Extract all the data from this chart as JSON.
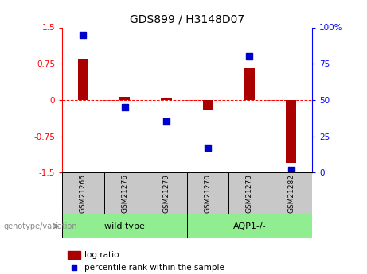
{
  "title": "GDS899 / H3148D07",
  "samples": [
    "GSM21266",
    "GSM21276",
    "GSM21279",
    "GSM21270",
    "GSM21273",
    "GSM21282"
  ],
  "log_ratios": [
    0.85,
    0.07,
    0.05,
    -0.2,
    0.65,
    -1.3
  ],
  "percentile_ranks": [
    95,
    45,
    35,
    17,
    80,
    2
  ],
  "bar_color": "#AA0000",
  "dot_color": "#0000CC",
  "ylim": [
    -1.5,
    1.5
  ],
  "yticks_left": [
    -1.5,
    -0.75,
    0.0,
    0.75,
    1.5
  ],
  "ytick_labels_left": [
    "-1.5",
    "-0.75",
    "0",
    "0.75",
    "1.5"
  ],
  "yticks_right_pos": [
    -1.5,
    -0.75,
    0.0,
    0.75,
    1.5
  ],
  "ytick_labels_right": [
    "0",
    "25",
    "50",
    "75",
    "100%"
  ],
  "hline_positions": [
    -0.75,
    0.0,
    0.75
  ],
  "hline_styles": [
    "dotted",
    "dashed",
    "dotted"
  ],
  "hline_colors": [
    "black",
    "red",
    "black"
  ],
  "bar_width": 0.25,
  "dot_size": 30,
  "legend_log_ratio": "log ratio",
  "legend_percentile": "percentile rank within the sample",
  "genotype_label": "genotype/variation",
  "group1_label": "wild type",
  "group2_label": "AQP1-/-",
  "group_color": "#90EE90",
  "tick_area_color": "#C8C8C8"
}
